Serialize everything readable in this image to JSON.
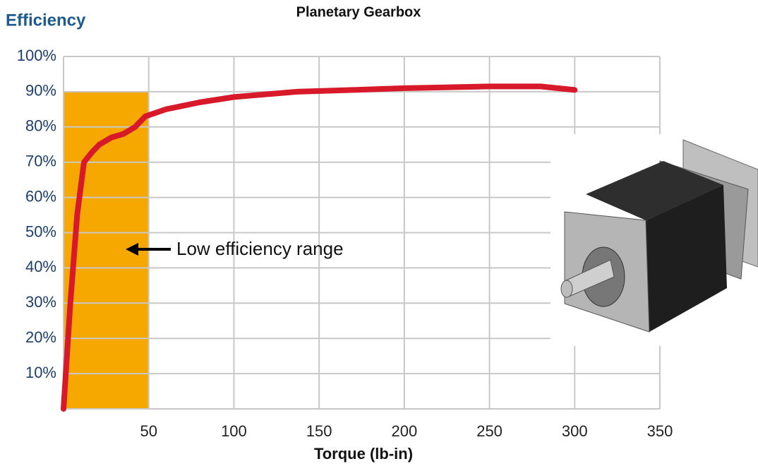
{
  "chart_data": {
    "type": "line",
    "title": "Planetary Gearbox",
    "y_label": "Efficiency",
    "x_label": "Torque (lb-in)",
    "annotation": "Low efficiency range",
    "x": [
      0,
      2,
      4,
      8,
      12,
      17,
      21,
      28,
      35,
      42,
      48,
      60,
      80,
      100,
      137,
      170,
      200,
      250,
      280,
      300
    ],
    "series": [
      {
        "name": "Efficiency",
        "color": "#d7192a",
        "values": [
          0,
          15,
          30,
          55,
          70,
          73,
          75,
          77,
          78,
          80,
          83,
          85,
          87,
          88.5,
          90,
          90.5,
          91,
          91.5,
          91.5,
          90.5
        ]
      }
    ],
    "shaded_region": {
      "xlim": [
        0,
        50
      ],
      "ylim": [
        0,
        90
      ],
      "color": "#f7a800"
    },
    "xlim": [
      0,
      350
    ],
    "ylim": [
      0,
      100
    ],
    "xticks": [
      50,
      100,
      150,
      200,
      250,
      300,
      350
    ],
    "yticks": [
      {
        "value": 10,
        "label": "10%"
      },
      {
        "value": 20,
        "label": "20%"
      },
      {
        "value": 30,
        "label": "30%"
      },
      {
        "value": 40,
        "label": "40%"
      },
      {
        "value": 50,
        "label": "50%"
      },
      {
        "value": 60,
        "label": "60%"
      },
      {
        "value": 70,
        "label": "70%"
      },
      {
        "value": 80,
        "label": "80%"
      },
      {
        "value": 90,
        "label": "90%"
      },
      {
        "value": 100,
        "label": "100%"
      }
    ],
    "grid": true
  }
}
